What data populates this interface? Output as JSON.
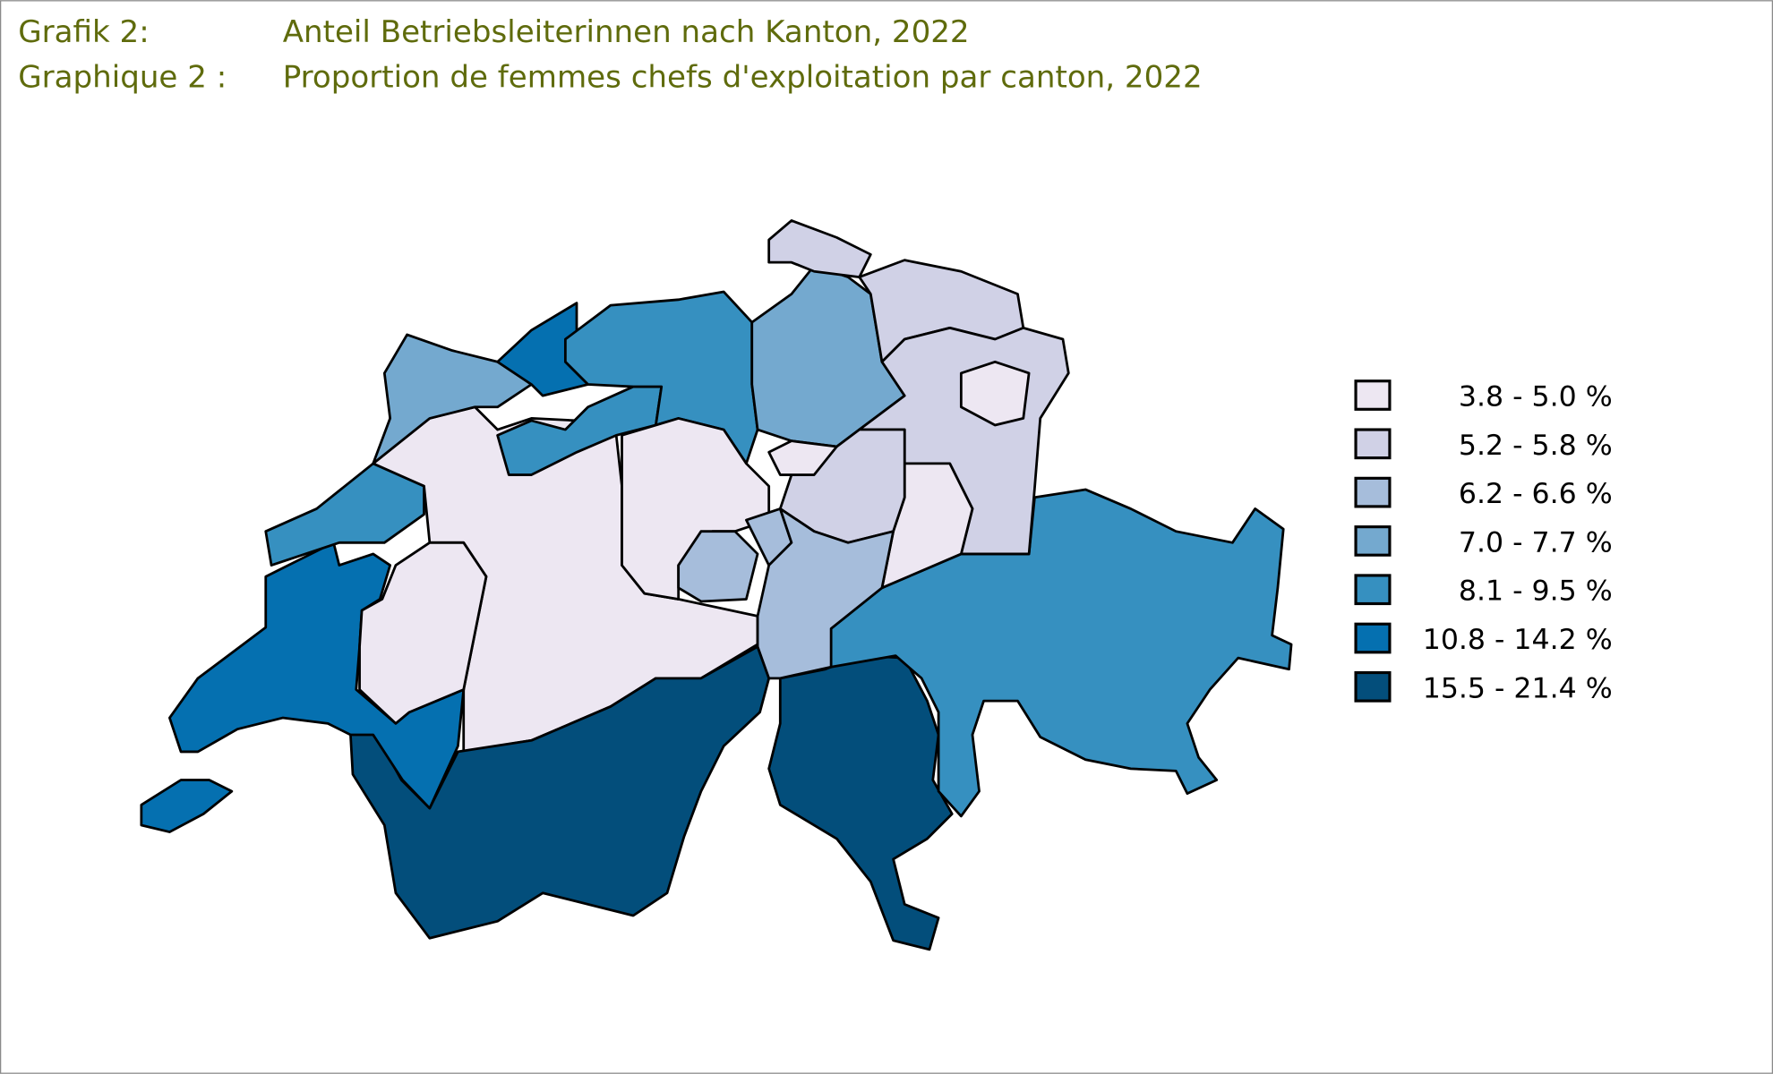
{
  "title": {
    "de_label": "Grafik 2:",
    "de_text": "Anteil Betriebsleiterinnen nach Kanton, 2022",
    "fr_label": "Graphique 2 :",
    "fr_text": "Proportion de femmes chefs d'exploitation par canton, 2022",
    "color": "#5f6b0c"
  },
  "legend": [
    {
      "label": "3.8 - 5.0 %",
      "color": "#ede7f2"
    },
    {
      "label": "5.2 - 5.8 %",
      "color": "#d0d1e6"
    },
    {
      "label": "6.2 - 6.6 %",
      "color": "#a6bddb"
    },
    {
      "label": "7.0 - 7.7 %",
      "color": "#74a9cf"
    },
    {
      "label": "8.1 - 9.5 %",
      "color": "#3690c0"
    },
    {
      "label": "10.8 - 14.2 %",
      "color": "#0570b0"
    },
    {
      "label": "15.5 - 21.4 %",
      "color": "#034e7b"
    }
  ],
  "regions": {
    "VS": 6,
    "TI": 6,
    "GR": 4,
    "VD": 5,
    "GE": 5,
    "FR": 0,
    "BE": 0,
    "JU": 3,
    "NE": 4,
    "SO": 4,
    "BL": 5,
    "AG": 4,
    "ZH": 3,
    "SH": 1,
    "TG": 1,
    "SG": 1,
    "AR": 0,
    "GL": 0,
    "SZ": 1,
    "ZG": 0,
    "LU": 0,
    "OW": 2,
    "NW": 2,
    "UR": 2
  }
}
